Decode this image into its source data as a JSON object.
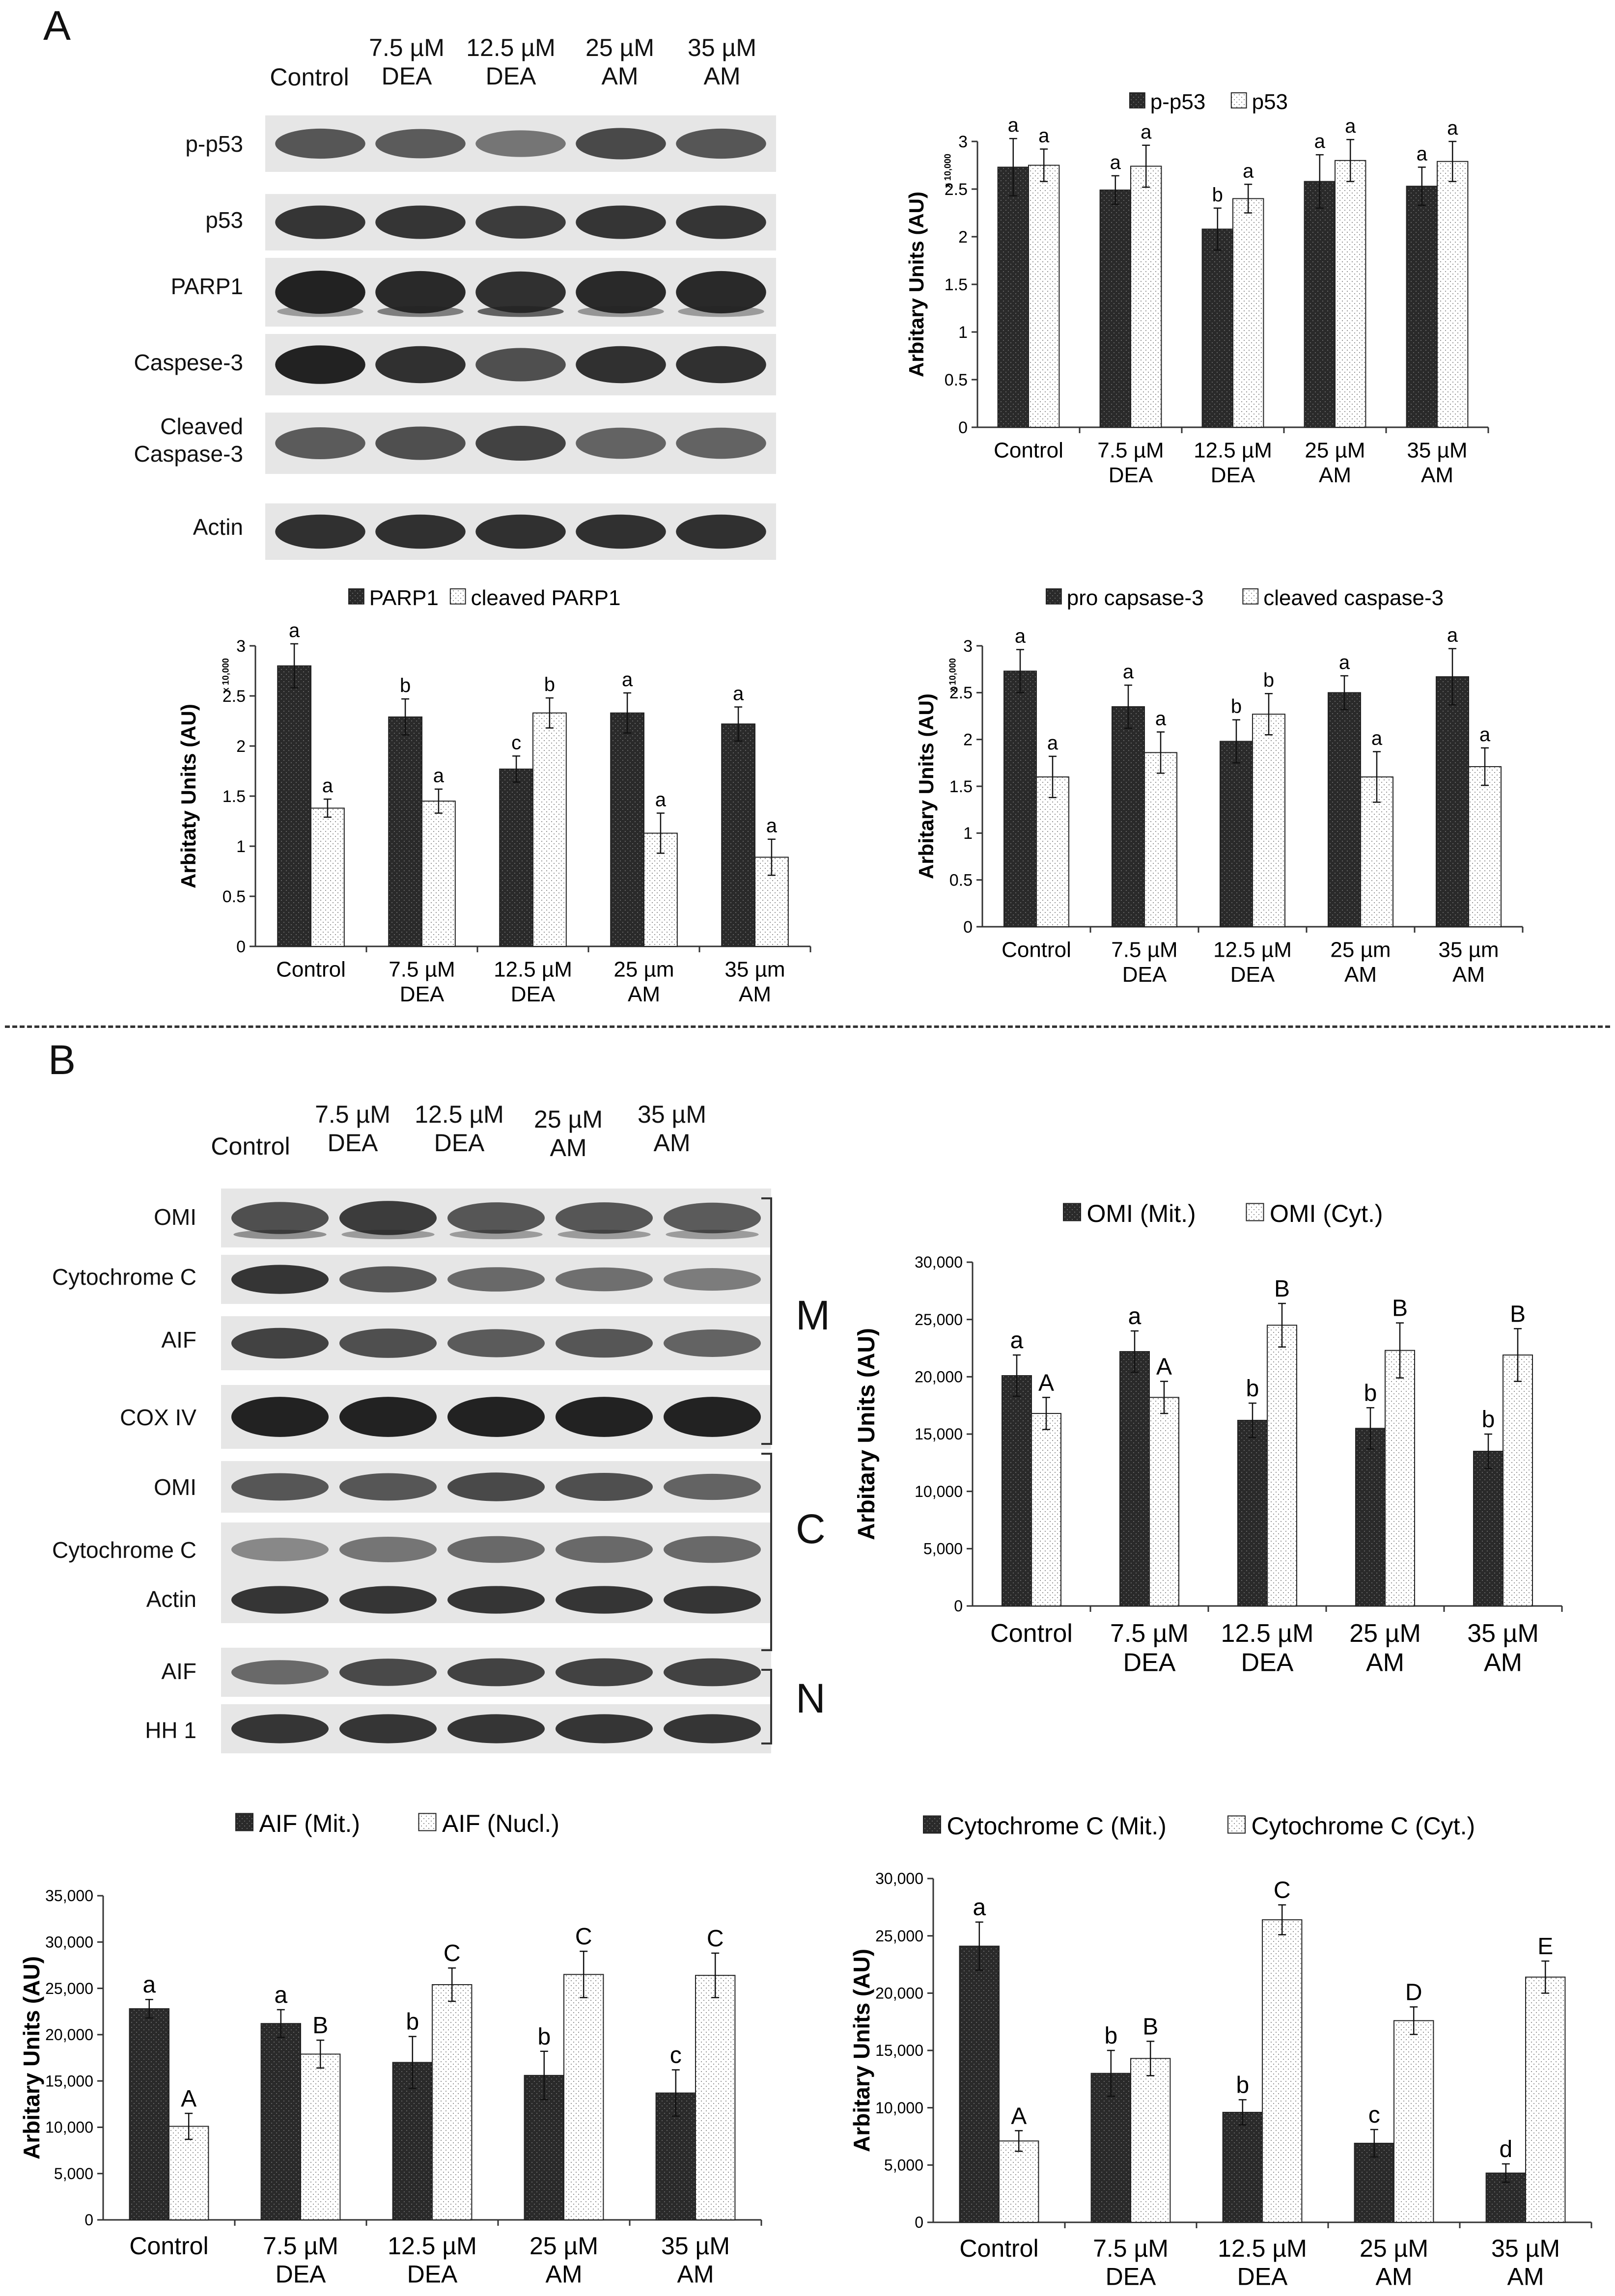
{
  "panelA": {
    "letter": "A",
    "blot": {
      "columns": [
        "Control",
        "7.5 µM\nDEA",
        "12.5 µM\nDEA",
        "25 µM\nAM",
        "35 µM\nAM"
      ],
      "rows": [
        "p-p53",
        "p53",
        "PARP1",
        "Caspese-3",
        "Cleaved\nCaspase-3",
        "Actin"
      ]
    }
  },
  "panelB": {
    "letter": "B",
    "blot": {
      "columns": [
        "Control",
        "7.5 µM\nDEA",
        "12.5 µM\nDEA",
        "25 µM\nAM",
        "35 µM\nAM"
      ],
      "rows": [
        "OMI",
        "Cytochrome C",
        "AIF",
        "COX IV",
        "OMI",
        "Cytochrome C",
        "Actin",
        "AIF",
        "HH 1"
      ],
      "brackets": [
        "M",
        "C",
        "N"
      ]
    }
  },
  "chart_data": [
    {
      "type": "bar",
      "categories": [
        "Control",
        "7.5 µM\nDEA",
        "12.5 µM\nDEA",
        "25 µM\nAM",
        "35 µM\nAM"
      ],
      "series": [
        {
          "name": "p-p53",
          "values": [
            2.73,
            2.49,
            2.08,
            2.58,
            2.53
          ],
          "errors": [
            0.3,
            0.15,
            0.22,
            0.28,
            0.2
          ],
          "labels": [
            "a",
            "a",
            "b",
            "a",
            "a"
          ],
          "fill": "dark"
        },
        {
          "name": "p53",
          "values": [
            2.75,
            2.74,
            2.4,
            2.8,
            2.79
          ],
          "errors": [
            0.17,
            0.22,
            0.15,
            0.22,
            0.21
          ],
          "labels": [
            "a",
            "a",
            "a",
            "a",
            "a"
          ],
          "fill": "light"
        }
      ],
      "ylabel": "Arbitary Units (AU)",
      "yunit": "x 10,000",
      "ylim": [
        0,
        3
      ],
      "yticks": [
        "0",
        "0.5",
        "1",
        "1.5",
        "2",
        "2.5",
        "3"
      ],
      "legend": "top"
    },
    {
      "type": "bar",
      "categories": [
        "Control",
        "7.5 µM\nDEA",
        "12.5 µM\nDEA",
        "25 µm\nAM",
        "35 µm\nAM"
      ],
      "series": [
        {
          "name": "PARP1",
          "values": [
            2.8,
            2.29,
            1.77,
            2.33,
            2.22
          ],
          "errors": [
            0.22,
            0.18,
            0.13,
            0.2,
            0.17
          ],
          "labels": [
            "a",
            "b",
            "c",
            "a",
            "a"
          ],
          "fill": "dark"
        },
        {
          "name": "cleaved PARP1",
          "values": [
            1.38,
            1.45,
            2.33,
            1.13,
            0.89
          ],
          "errors": [
            0.09,
            0.12,
            0.15,
            0.2,
            0.18
          ],
          "labels": [
            "a",
            "a",
            "b",
            "a",
            "a"
          ],
          "fill": "light"
        }
      ],
      "ylabel": "Arbitaty Units (AU)",
      "yunit": "x 10,000",
      "ylim": [
        0,
        3
      ],
      "yticks": [
        "0",
        "0.5",
        "1",
        "1.5",
        "2",
        "2.5",
        "3"
      ],
      "legend": "top"
    },
    {
      "type": "bar",
      "categories": [
        "Control",
        "7.5 µM\nDEA",
        "12.5 µM\nDEA",
        "25 µm\nAM",
        "35 µm\nAM"
      ],
      "series": [
        {
          "name": "pro capsase-3",
          "values": [
            2.73,
            2.35,
            1.98,
            2.5,
            2.67
          ],
          "errors": [
            0.23,
            0.23,
            0.23,
            0.18,
            0.3
          ],
          "labels": [
            "a",
            "a",
            "b",
            "a",
            "a"
          ],
          "fill": "dark"
        },
        {
          "name": "cleaved caspase-3",
          "values": [
            1.6,
            1.86,
            2.27,
            1.6,
            1.71
          ],
          "errors": [
            0.22,
            0.22,
            0.22,
            0.27,
            0.2
          ],
          "labels": [
            "a",
            "a",
            "b",
            "a",
            "a"
          ],
          "fill": "light"
        }
      ],
      "ylabel": "Arbitary Units (AU)",
      "yunit": "x 10,000",
      "ylim": [
        0,
        3
      ],
      "yticks": [
        "0",
        "0.5",
        "1",
        "1.5",
        "2",
        "2.5",
        "3"
      ],
      "legend": "top"
    },
    {
      "type": "bar",
      "categories": [
        "Control",
        "7.5 µM\nDEA",
        "12.5 µM\nDEA",
        "25 µM\nAM",
        "35 µM\nAM"
      ],
      "series": [
        {
          "name": "OMI (Mit.)",
          "values": [
            20100,
            22200,
            16200,
            15500,
            13500
          ],
          "errors": [
            1800,
            1800,
            1500,
            1800,
            1500
          ],
          "labels": [
            "a",
            "a",
            "b",
            "b",
            "b"
          ],
          "fill": "dark"
        },
        {
          "name": "OMI (Cyt.)",
          "values": [
            16800,
            18200,
            24500,
            22300,
            21900
          ],
          "errors": [
            1400,
            1400,
            1900,
            2400,
            2300
          ],
          "labels": [
            "A",
            "A",
            "B",
            "B",
            "B"
          ],
          "fill": "light"
        }
      ],
      "ylabel": "Arbitary Units (AU)",
      "ylim": [
        0,
        30000
      ],
      "yticks": [
        "0",
        "5,000",
        "10,000",
        "15,000",
        "20,000",
        "25,000",
        "30,000"
      ],
      "legend": "top"
    },
    {
      "type": "bar",
      "categories": [
        "Control",
        "7.5 µM\nDEA",
        "12.5 µM\nDEA",
        "25 µM\nAM",
        "35 µM\nAM"
      ],
      "series": [
        {
          "name": "AIF (Mit.)",
          "values": [
            22800,
            21200,
            17000,
            15600,
            13700
          ],
          "errors": [
            1000,
            1500,
            2800,
            2600,
            2500
          ],
          "labels": [
            "a",
            "a",
            "b",
            "b",
            "c"
          ],
          "fill": "dark"
        },
        {
          "name": "AIF (Nucl.)",
          "values": [
            10100,
            17900,
            25400,
            26500,
            26400
          ],
          "errors": [
            1400,
            1500,
            1800,
            2500,
            2400
          ],
          "labels": [
            "A",
            "B",
            "C",
            "C",
            "C"
          ],
          "fill": "light"
        }
      ],
      "ylabel": "Arbitary Units (AU)",
      "ylim": [
        0,
        35000
      ],
      "yticks": [
        "0",
        "5,000",
        "10,000",
        "15,000",
        "20,000",
        "25,000",
        "30,000",
        "35,000"
      ],
      "legend": "top"
    },
    {
      "type": "bar",
      "categories": [
        "Control",
        "7.5 µM\nDEA",
        "12.5 µM\nDEA",
        "25 µM\nAM",
        "35 µM\nAM"
      ],
      "series": [
        {
          "name": "Cytochrome C (Mit.)",
          "values": [
            24100,
            13000,
            9600,
            6900,
            4300
          ],
          "errors": [
            2100,
            2000,
            1100,
            1200,
            800
          ],
          "labels": [
            "a",
            "b",
            "b",
            "c",
            "d"
          ],
          "fill": "dark"
        },
        {
          "name": "Cytochrome C (Cyt.)",
          "values": [
            7100,
            14300,
            26400,
            17600,
            21400
          ],
          "errors": [
            900,
            1500,
            1300,
            1200,
            1400
          ],
          "labels": [
            "A",
            "B",
            "C",
            "D",
            "E"
          ],
          "fill": "light"
        }
      ],
      "ylabel": "Arbitary Units (AU)",
      "ylim": [
        0,
        30000
      ],
      "yticks": [
        "0",
        "5,000",
        "10,000",
        "15,000",
        "20,000",
        "25,000",
        "30,000"
      ],
      "legend": "top"
    }
  ]
}
